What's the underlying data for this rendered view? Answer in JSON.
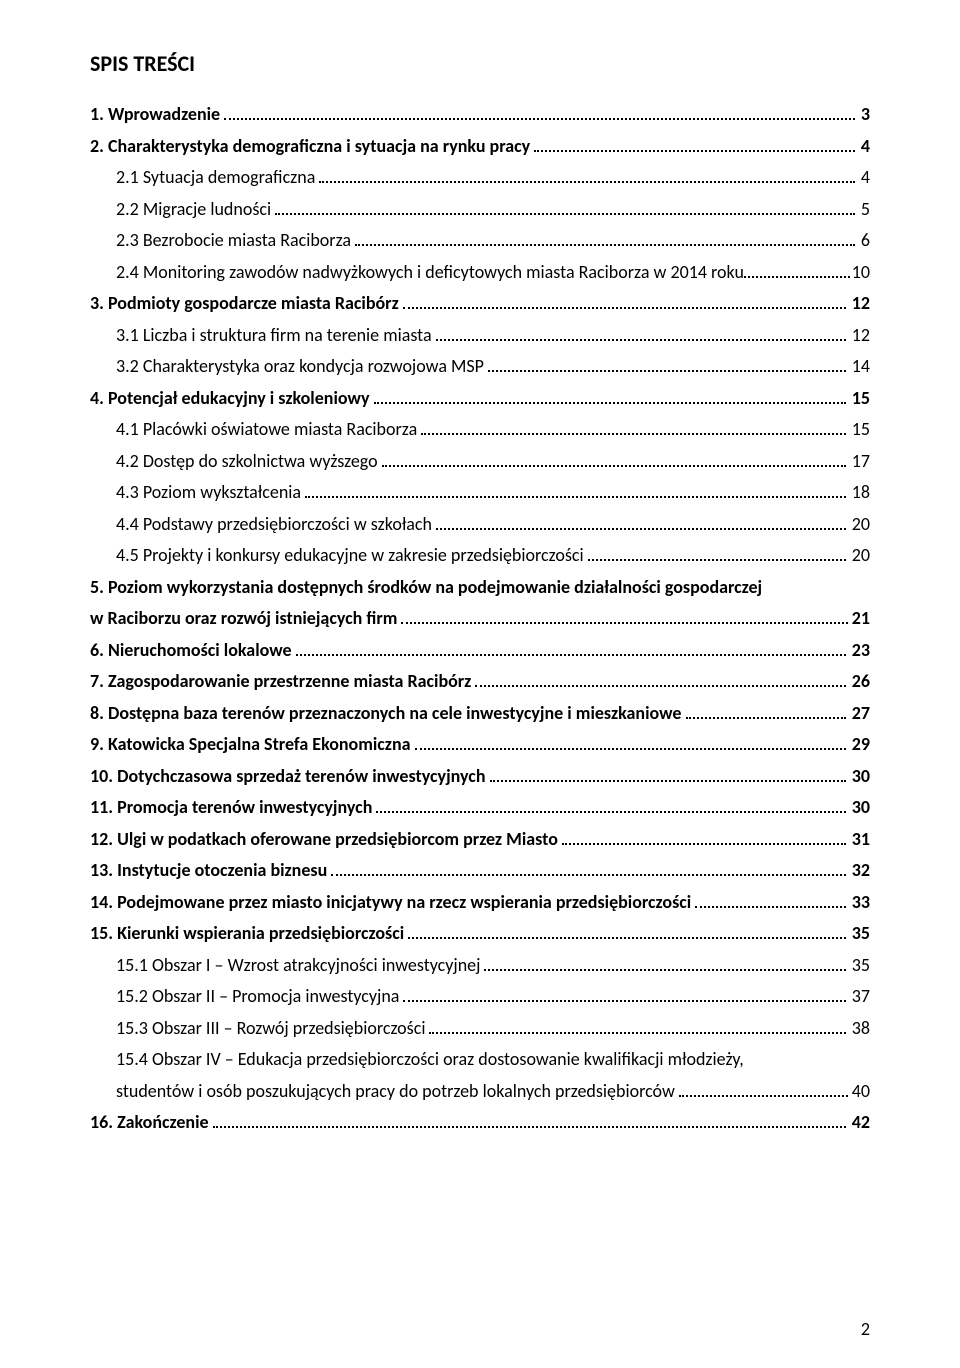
{
  "title": "SPIS TREŚCI",
  "page_number": "2",
  "entries": [
    {
      "label": "1. Wprowadzenie",
      "page": "3",
      "bold": true,
      "indent": 0
    },
    {
      "label": "2. Charakterystyka demograficzna i sytuacja na rynku pracy",
      "page": "4",
      "bold": true,
      "indent": 0
    },
    {
      "label": "2.1 Sytuacja demograficzna",
      "page": "4",
      "bold": false,
      "indent": 26
    },
    {
      "label": "2.2 Migracje ludności",
      "page": "5",
      "bold": false,
      "indent": 26
    },
    {
      "label": "2.3 Bezrobocie miasta Raciborza",
      "page": "6",
      "bold": false,
      "indent": 26
    },
    {
      "label": "2.4 Monitoring zawodów nadwyżkowych i deficytowych miasta Raciborza w 2014 roku",
      "page": "10",
      "bold": false,
      "indent": 26,
      "no_dots_space": true
    },
    {
      "label": "3. Podmioty gospodarcze miasta Racibórz",
      "page": "12",
      "bold": true,
      "indent": 0
    },
    {
      "label": "3.1 Liczba i struktura firm na terenie miasta",
      "page": "12",
      "bold": false,
      "indent": 26
    },
    {
      "label": "3.2 Charakterystyka oraz kondycja rozwojowa MSP",
      "page": "14",
      "bold": false,
      "indent": 26
    },
    {
      "label": "4. Potencjał edukacyjny i szkoleniowy",
      "page": "15",
      "bold": true,
      "indent": 0
    },
    {
      "label": "4.1 Placówki oświatowe miasta Raciborza",
      "page": "15",
      "bold": false,
      "indent": 26
    },
    {
      "label": "4.2 Dostęp do szkolnictwa wyższego",
      "page": "17",
      "bold": false,
      "indent": 26
    },
    {
      "label": "4.3 Poziom wykształcenia",
      "page": "18",
      "bold": false,
      "indent": 26
    },
    {
      "label": "4.4 Podstawy przedsiębiorczości w szkołach",
      "page": "20",
      "bold": false,
      "indent": 26
    },
    {
      "label": "4.5 Projekty i konkursy edukacyjne w zakresie przedsiębiorczości",
      "page": "20",
      "bold": false,
      "indent": 26
    },
    {
      "wrap": true,
      "bold": true,
      "indent": 0,
      "line1": "5. Poziom wykorzystania dostępnych środków na podejmowanie działalności gospodarczej",
      "line2": "w Raciborzu oraz rozwój istniejących firm",
      "page": "21"
    },
    {
      "label": "6. Nieruchomości lokalowe",
      "page": "23",
      "bold": true,
      "indent": 0
    },
    {
      "label": "7. Zagospodarowanie przestrzenne miasta Racibórz",
      "page": "26",
      "bold": true,
      "indent": 0
    },
    {
      "label": "8. Dostępna baza terenów przeznaczonych na cele inwestycyjne  i mieszkaniowe",
      "page": "27",
      "bold": true,
      "indent": 0
    },
    {
      "label": "9. Katowicka Specjalna Strefa Ekonomiczna",
      "page": "29",
      "bold": true,
      "indent": 0
    },
    {
      "label": "10. Dotychczasowa sprzedaż terenów inwestycyjnych",
      "page": "30",
      "bold": true,
      "indent": 0
    },
    {
      "label": "11. Promocja terenów inwestycyjnych",
      "page": "30",
      "bold": true,
      "indent": 0
    },
    {
      "label": "12. Ulgi w podatkach oferowane przedsiębiorcom przez Miasto",
      "page": "31",
      "bold": true,
      "indent": 0
    },
    {
      "label": "13. Instytucje otoczenia biznesu",
      "page": "32",
      "bold": true,
      "indent": 0
    },
    {
      "label": "14. Podejmowane przez miasto inicjatywy na rzecz wspierania przedsiębiorczości",
      "page": "33",
      "bold": true,
      "indent": 0
    },
    {
      "label": "15. Kierunki wspierania przedsiębiorczości",
      "page": "35",
      "bold": true,
      "indent": 0
    },
    {
      "label": "15.1 Obszar I – Wzrost atrakcyjności inwestycyjnej",
      "page": "35",
      "bold": false,
      "indent": 26
    },
    {
      "label": "15.2 Obszar II – Promocja inwestycyjna",
      "page": "37",
      "bold": false,
      "indent": 26
    },
    {
      "label": "15.3 Obszar III – Rozwój przedsiębiorczości",
      "page": "38",
      "bold": false,
      "indent": 26
    },
    {
      "wrap": true,
      "bold": false,
      "indent": 26,
      "line1": "15.4 Obszar IV – Edukacja przedsiębiorczości oraz dostosowanie kwalifikacji młodzieży,",
      "line2": "studentów i osób poszukujących pracy do potrzeb lokalnych przedsiębiorców",
      "page": "40"
    },
    {
      "label": "16. Zakończenie",
      "page": "42",
      "bold": true,
      "indent": 0
    }
  ]
}
